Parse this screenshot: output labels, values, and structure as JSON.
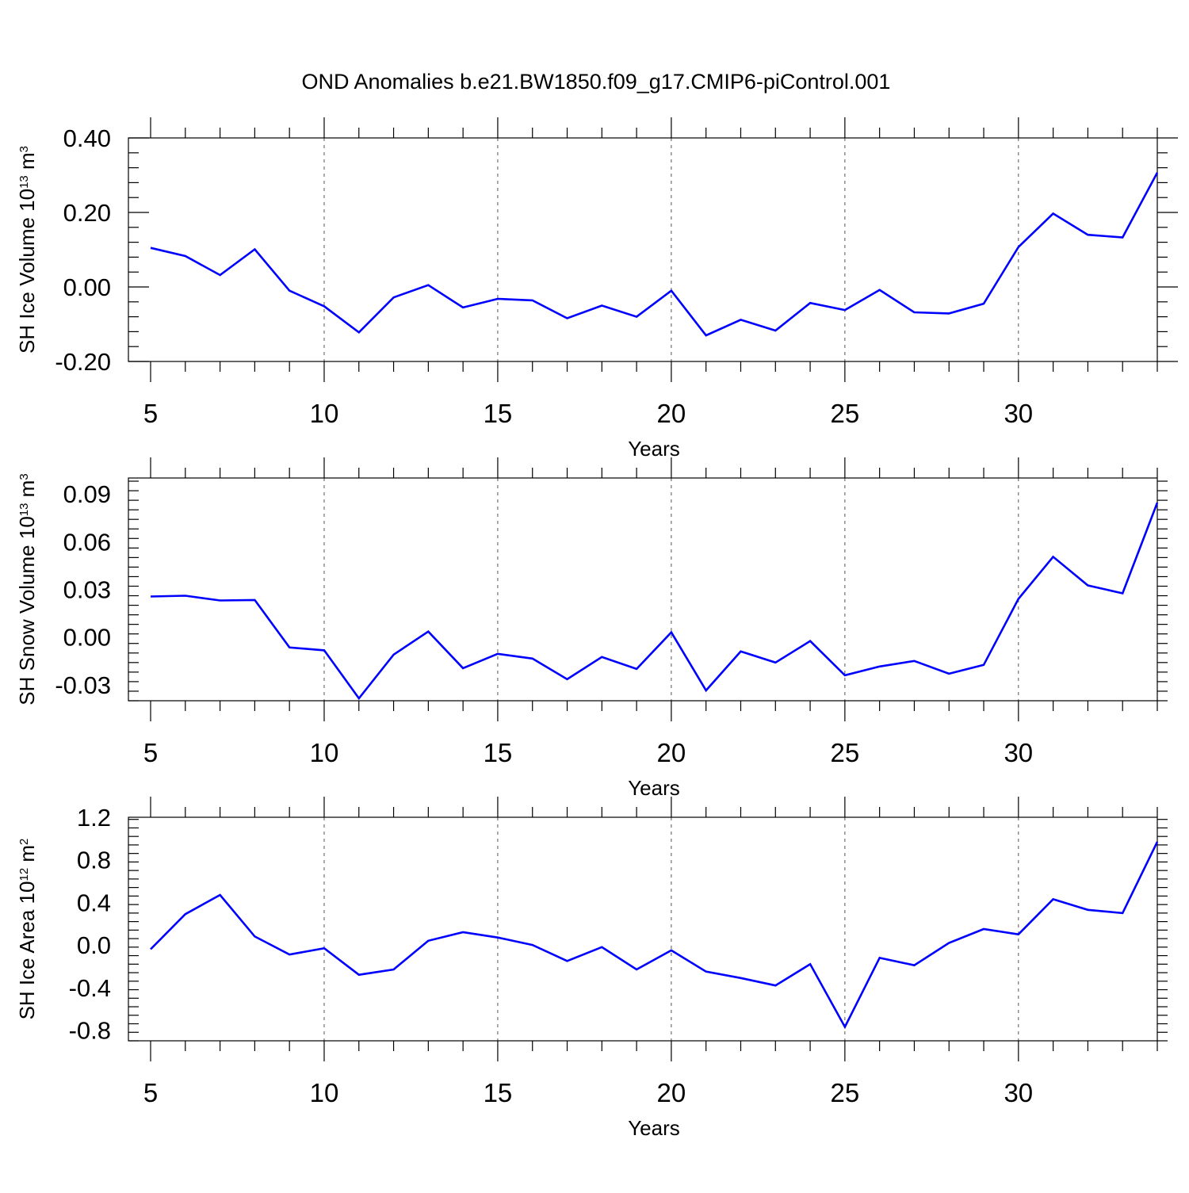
{
  "title": "OND Anomalies b.e21.BW1850.f09_g17.CMIP6-piControl.001",
  "colors": {
    "line": "#0000ff",
    "frame": "#000000",
    "grid": "#555555"
  },
  "chart_data": [
    {
      "type": "line",
      "xlabel": "Years",
      "ylabel": {
        "main": "SH Ice Volume 10",
        "exp": "13",
        "unit": " m",
        "unit_exp": "3"
      },
      "xlim": [
        5,
        34
      ],
      "ylim": [
        -0.2,
        0.4
      ],
      "xticks": [
        5,
        10,
        15,
        20,
        25,
        30
      ],
      "yticks": [
        -0.2,
        0.0,
        0.2,
        0.4
      ],
      "ytick_labels": [
        "-0.20",
        "0.00",
        "0.20",
        "0.40"
      ],
      "grid_x": [
        10,
        15,
        20,
        25,
        30
      ],
      "series": [
        {
          "x": [
            5,
            6,
            7,
            8,
            9,
            10,
            11,
            12,
            13,
            14,
            15,
            16,
            17,
            18,
            19,
            20,
            21,
            22,
            23,
            24,
            25,
            26,
            27,
            28,
            29,
            30,
            31,
            32,
            33,
            34
          ],
          "values": [
            0.105,
            0.083,
            0.032,
            0.101,
            -0.01,
            -0.052,
            -0.122,
            -0.028,
            0.005,
            -0.055,
            -0.032,
            -0.036,
            -0.084,
            -0.05,
            -0.08,
            -0.01,
            -0.13,
            -0.088,
            -0.117,
            -0.043,
            -0.062,
            -0.008,
            -0.068,
            -0.071,
            -0.045,
            0.107,
            0.197,
            0.14,
            0.133,
            0.307
          ]
        }
      ]
    },
    {
      "type": "line",
      "xlabel": "Years",
      "ylabel": {
        "main": "SH Snow Volume 10",
        "exp": "13",
        "unit": " m",
        "unit_exp": "3"
      },
      "xlim": [
        5,
        34
      ],
      "ylim": [
        -0.04,
        0.1
      ],
      "xticks": [
        5,
        10,
        15,
        20,
        25,
        30
      ],
      "yticks": [
        -0.03,
        0.0,
        0.03,
        0.06,
        0.09
      ],
      "ytick_labels": [
        "-0.03",
        "0.00",
        "0.03",
        "0.06",
        "0.09"
      ],
      "grid_x": [
        10,
        15,
        20,
        25,
        30
      ],
      "series": [
        {
          "x": [
            5,
            6,
            7,
            8,
            9,
            10,
            11,
            12,
            13,
            14,
            15,
            16,
            17,
            18,
            19,
            20,
            21,
            22,
            23,
            24,
            25,
            26,
            27,
            28,
            29,
            30,
            31,
            32,
            33,
            34
          ],
          "values": [
            0.0255,
            0.026,
            0.023,
            0.0233,
            -0.0065,
            -0.0083,
            -0.0385,
            -0.011,
            0.0035,
            -0.0195,
            -0.0105,
            -0.0135,
            -0.0265,
            -0.0125,
            -0.02,
            0.003,
            -0.0335,
            -0.009,
            -0.016,
            -0.0025,
            -0.024,
            -0.0185,
            -0.015,
            -0.023,
            -0.0175,
            0.024,
            0.0505,
            0.0325,
            0.0275,
            0.0845
          ]
        }
      ]
    },
    {
      "type": "line",
      "xlabel": "Years",
      "ylabel": {
        "main": "SH Ice Area 10",
        "exp": "12",
        "unit": " m",
        "unit_exp": "2"
      },
      "xlim": [
        5,
        34
      ],
      "ylim": [
        -0.9,
        1.2
      ],
      "xticks": [
        5,
        10,
        15,
        20,
        25,
        30
      ],
      "yticks": [
        -0.8,
        -0.4,
        0.0,
        0.4,
        0.8,
        1.2
      ],
      "ytick_labels": [
        "-0.8",
        "-0.4",
        "0.0",
        "0.4",
        "0.8",
        "1.2"
      ],
      "grid_x": [
        10,
        15,
        20,
        25,
        30
      ],
      "series": [
        {
          "x": [
            5,
            6,
            7,
            8,
            9,
            10,
            11,
            12,
            13,
            14,
            15,
            16,
            17,
            18,
            19,
            20,
            21,
            22,
            23,
            24,
            25,
            26,
            27,
            28,
            29,
            30,
            31,
            32,
            33,
            34
          ],
          "values": [
            -0.04,
            0.29,
            0.47,
            0.08,
            -0.09,
            -0.03,
            -0.28,
            -0.23,
            0.04,
            0.12,
            0.07,
            0.0,
            -0.15,
            -0.02,
            -0.23,
            -0.05,
            -0.25,
            -0.31,
            -0.38,
            -0.18,
            -0.77,
            -0.12,
            -0.19,
            0.02,
            0.15,
            0.1,
            0.43,
            0.33,
            0.3,
            0.97
          ]
        }
      ]
    }
  ]
}
